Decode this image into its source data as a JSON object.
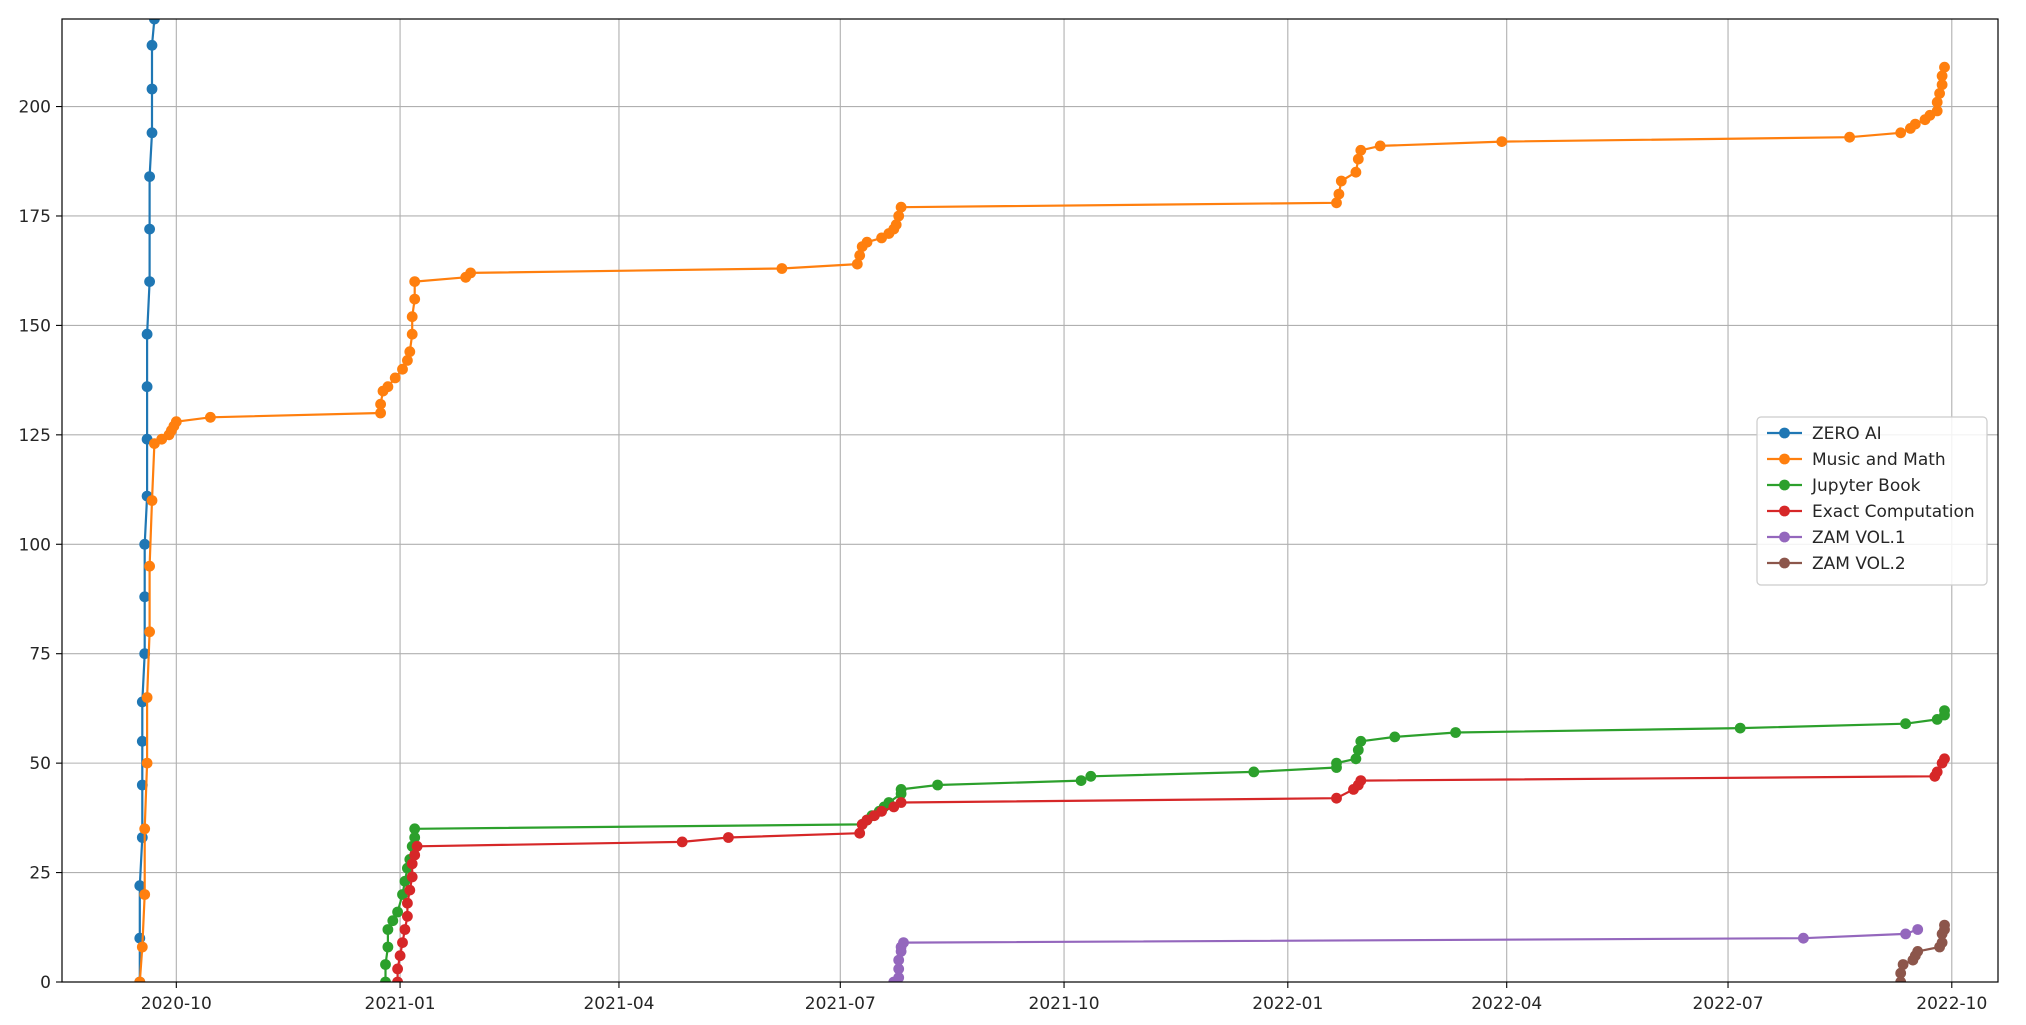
{
  "chart_data": {
    "type": "line",
    "title": "",
    "xlabel": "",
    "ylabel": "",
    "x_axis": {
      "type": "date",
      "range": [
        "2020-08-15",
        "2022-10-20"
      ],
      "ticks": [
        {
          "date": "2020-10-01",
          "label": "2020-10"
        },
        {
          "date": "2021-01-01",
          "label": "2021-01"
        },
        {
          "date": "2021-04-01",
          "label": "2021-04"
        },
        {
          "date": "2021-07-01",
          "label": "2021-07"
        },
        {
          "date": "2021-10-01",
          "label": "2021-10"
        },
        {
          "date": "2022-01-01",
          "label": "2022-01"
        },
        {
          "date": "2022-04-01",
          "label": "2022-04"
        },
        {
          "date": "2022-07-01",
          "label": "2022-07"
        },
        {
          "date": "2022-10-01",
          "label": "2022-10"
        }
      ]
    },
    "y_axis": {
      "range": [
        0,
        220
      ],
      "ticks": [
        {
          "value": 0,
          "label": "0"
        },
        {
          "value": 25,
          "label": "25"
        },
        {
          "value": 50,
          "label": "50"
        },
        {
          "value": 75,
          "label": "75"
        },
        {
          "value": 100,
          "label": "100"
        },
        {
          "value": 125,
          "label": "125"
        },
        {
          "value": 150,
          "label": "150"
        },
        {
          "value": 175,
          "label": "175"
        },
        {
          "value": 200,
          "label": "200"
        }
      ]
    },
    "grid": true,
    "legend_position": "center-right",
    "markers": "circle",
    "series": [
      {
        "name": "ZERO AI",
        "color": "#1f77b4",
        "points": [
          [
            "2020-09-16",
            0
          ],
          [
            "2020-09-16",
            10
          ],
          [
            "2020-09-16",
            22
          ],
          [
            "2020-09-17",
            33
          ],
          [
            "2020-09-17",
            45
          ],
          [
            "2020-09-17",
            55
          ],
          [
            "2020-09-17",
            64
          ],
          [
            "2020-09-18",
            75
          ],
          [
            "2020-09-18",
            88
          ],
          [
            "2020-09-18",
            100
          ],
          [
            "2020-09-19",
            111
          ],
          [
            "2020-09-19",
            124
          ],
          [
            "2020-09-19",
            136
          ],
          [
            "2020-09-19",
            148
          ],
          [
            "2020-09-20",
            160
          ],
          [
            "2020-09-20",
            172
          ],
          [
            "2020-09-20",
            184
          ],
          [
            "2020-09-21",
            194
          ],
          [
            "2020-09-21",
            204
          ],
          [
            "2020-09-21",
            214
          ],
          [
            "2020-09-22",
            220
          ]
        ]
      },
      {
        "name": "Music and Math",
        "color": "#ff7f0e",
        "points": [
          [
            "2020-09-16",
            0
          ],
          [
            "2020-09-17",
            8
          ],
          [
            "2020-09-18",
            20
          ],
          [
            "2020-09-18",
            35
          ],
          [
            "2020-09-19",
            50
          ],
          [
            "2020-09-19",
            65
          ],
          [
            "2020-09-20",
            80
          ],
          [
            "2020-09-20",
            95
          ],
          [
            "2020-09-21",
            110
          ],
          [
            "2020-09-22",
            123
          ],
          [
            "2020-09-25",
            124
          ],
          [
            "2020-09-28",
            125
          ],
          [
            "2020-09-29",
            126
          ],
          [
            "2020-09-30",
            127
          ],
          [
            "2020-10-01",
            128
          ],
          [
            "2020-10-15",
            129
          ],
          [
            "2020-12-24",
            130
          ],
          [
            "2020-12-24",
            132
          ],
          [
            "2020-12-25",
            135
          ],
          [
            "2020-12-27",
            136
          ],
          [
            "2020-12-30",
            138
          ],
          [
            "2021-01-02",
            140
          ],
          [
            "2021-01-04",
            142
          ],
          [
            "2021-01-05",
            144
          ],
          [
            "2021-01-06",
            148
          ],
          [
            "2021-01-06",
            152
          ],
          [
            "2021-01-07",
            156
          ],
          [
            "2021-01-07",
            160
          ],
          [
            "2021-01-28",
            161
          ],
          [
            "2021-01-30",
            162
          ],
          [
            "2021-06-07",
            163
          ],
          [
            "2021-07-08",
            164
          ],
          [
            "2021-07-09",
            166
          ],
          [
            "2021-07-10",
            168
          ],
          [
            "2021-07-12",
            169
          ],
          [
            "2021-07-18",
            170
          ],
          [
            "2021-07-21",
            171
          ],
          [
            "2021-07-23",
            172
          ],
          [
            "2021-07-24",
            173
          ],
          [
            "2021-07-25",
            175
          ],
          [
            "2021-07-26",
            177
          ],
          [
            "2022-01-21",
            178
          ],
          [
            "2022-01-22",
            180
          ],
          [
            "2022-01-23",
            183
          ],
          [
            "2022-01-29",
            185
          ],
          [
            "2022-01-30",
            188
          ],
          [
            "2022-01-31",
            190
          ],
          [
            "2022-02-08",
            191
          ],
          [
            "2022-03-30",
            192
          ],
          [
            "2022-08-20",
            193
          ],
          [
            "2022-09-10",
            194
          ],
          [
            "2022-09-14",
            195
          ],
          [
            "2022-09-16",
            196
          ],
          [
            "2022-09-20",
            197
          ],
          [
            "2022-09-22",
            198
          ],
          [
            "2022-09-25",
            199
          ],
          [
            "2022-09-25",
            201
          ],
          [
            "2022-09-26",
            203
          ],
          [
            "2022-09-27",
            205
          ],
          [
            "2022-09-27",
            207
          ],
          [
            "2022-09-28",
            209
          ]
        ]
      },
      {
        "name": "Jupyter Book",
        "color": "#2ca02c",
        "points": [
          [
            "2020-12-26",
            0
          ],
          [
            "2020-12-26",
            4
          ],
          [
            "2020-12-27",
            8
          ],
          [
            "2020-12-27",
            12
          ],
          [
            "2020-12-29",
            14
          ],
          [
            "2020-12-31",
            16
          ],
          [
            "2021-01-02",
            20
          ],
          [
            "2021-01-03",
            23
          ],
          [
            "2021-01-04",
            26
          ],
          [
            "2021-01-05",
            28
          ],
          [
            "2021-01-06",
            31
          ],
          [
            "2021-01-07",
            33
          ],
          [
            "2021-01-07",
            35
          ],
          [
            "2021-07-10",
            36
          ],
          [
            "2021-07-12",
            37
          ],
          [
            "2021-07-14",
            38
          ],
          [
            "2021-07-17",
            39
          ],
          [
            "2021-07-19",
            40
          ],
          [
            "2021-07-21",
            41
          ],
          [
            "2021-07-26",
            43
          ],
          [
            "2021-07-26",
            44
          ],
          [
            "2021-08-10",
            45
          ],
          [
            "2021-10-08",
            46
          ],
          [
            "2021-10-12",
            47
          ],
          [
            "2021-12-18",
            48
          ],
          [
            "2022-01-21",
            49
          ],
          [
            "2022-01-21",
            50
          ],
          [
            "2022-01-29",
            51
          ],
          [
            "2022-01-30",
            53
          ],
          [
            "2022-01-31",
            55
          ],
          [
            "2022-02-14",
            56
          ],
          [
            "2022-03-11",
            57
          ],
          [
            "2022-07-06",
            58
          ],
          [
            "2022-09-12",
            59
          ],
          [
            "2022-09-25",
            60
          ],
          [
            "2022-09-28",
            61
          ],
          [
            "2022-09-28",
            62
          ]
        ]
      },
      {
        "name": "Exact Computation",
        "color": "#d62728",
        "points": [
          [
            "2020-12-31",
            0
          ],
          [
            "2020-12-31",
            3
          ],
          [
            "2021-01-01",
            6
          ],
          [
            "2021-01-02",
            9
          ],
          [
            "2021-01-03",
            12
          ],
          [
            "2021-01-04",
            15
          ],
          [
            "2021-01-04",
            18
          ],
          [
            "2021-01-05",
            21
          ],
          [
            "2021-01-06",
            24
          ],
          [
            "2021-01-06",
            27
          ],
          [
            "2021-01-07",
            29
          ],
          [
            "2021-01-08",
            31
          ],
          [
            "2021-04-27",
            32
          ],
          [
            "2021-05-16",
            33
          ],
          [
            "2021-07-09",
            34
          ],
          [
            "2021-07-10",
            36
          ],
          [
            "2021-07-12",
            37
          ],
          [
            "2021-07-15",
            38
          ],
          [
            "2021-07-18",
            39
          ],
          [
            "2021-07-23",
            40
          ],
          [
            "2021-07-26",
            41
          ],
          [
            "2022-01-21",
            42
          ],
          [
            "2022-01-28",
            44
          ],
          [
            "2022-01-30",
            45
          ],
          [
            "2022-01-31",
            46
          ],
          [
            "2022-09-24",
            47
          ],
          [
            "2022-09-25",
            48
          ],
          [
            "2022-09-27",
            50
          ],
          [
            "2022-09-28",
            51
          ]
        ]
      },
      {
        "name": "ZAM VOL.1",
        "color": "#9467bd",
        "points": [
          [
            "2021-07-23",
            0
          ],
          [
            "2021-07-25",
            1
          ],
          [
            "2021-07-25",
            3
          ],
          [
            "2021-07-25",
            5
          ],
          [
            "2021-07-26",
            7
          ],
          [
            "2021-07-26",
            8
          ],
          [
            "2021-07-27",
            9
          ],
          [
            "2022-08-01",
            10
          ],
          [
            "2022-09-12",
            11
          ],
          [
            "2022-09-17",
            12
          ]
        ]
      },
      {
        "name": "ZAM VOL.2",
        "color": "#8c564b",
        "points": [
          [
            "2022-09-10",
            0
          ],
          [
            "2022-09-10",
            2
          ],
          [
            "2022-09-11",
            4
          ],
          [
            "2022-09-15",
            5
          ],
          [
            "2022-09-16",
            6
          ],
          [
            "2022-09-17",
            7
          ],
          [
            "2022-09-26",
            8
          ],
          [
            "2022-09-27",
            9
          ],
          [
            "2022-09-27",
            11
          ],
          [
            "2022-09-28",
            12
          ],
          [
            "2022-09-28",
            13
          ]
        ]
      }
    ]
  }
}
